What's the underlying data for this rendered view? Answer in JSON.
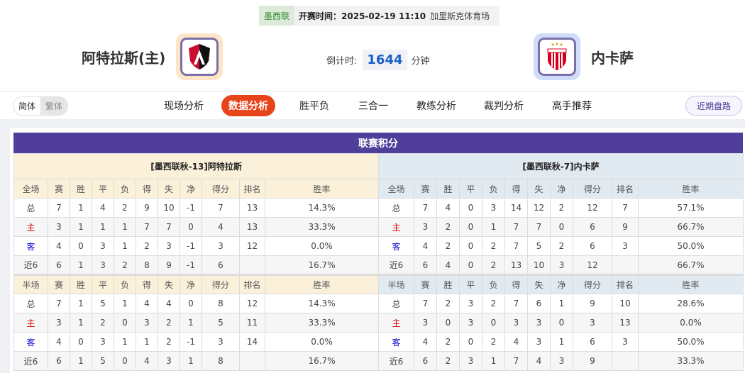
{
  "match": {
    "league": "墨西联",
    "time": "开赛时间：2025-02-19 11:10",
    "venue": "加里斯克体育场",
    "countdown_label": "倒计时:",
    "countdown_value": "1644",
    "countdown_unit": "分钟"
  },
  "home": {
    "name": "阿特拉斯(主)",
    "logo_color": "#c8102e"
  },
  "away": {
    "name": "内卡萨",
    "logo_color": "#d6001c"
  },
  "lang": {
    "simplified": "简体",
    "traditional": "繁体"
  },
  "tabs": [
    "现场分析",
    "数据分析",
    "胜平负",
    "三合一",
    "教练分析",
    "裁判分析",
    "高手推荐"
  ],
  "active_tab": "数据分析",
  "recent_button": "近期盘路",
  "standings": {
    "title": "联赛积分",
    "columns_full": [
      "全场",
      "赛",
      "胜",
      "平",
      "负",
      "得",
      "失",
      "净",
      "得分",
      "排名",
      "胜率"
    ],
    "columns_half": [
      "半场",
      "赛",
      "胜",
      "平",
      "负",
      "得",
      "失",
      "净",
      "得分",
      "排名",
      "胜率"
    ],
    "left": {
      "team": "[墨西联秋-13]阿特拉斯",
      "full": [
        [
          "总",
          "7",
          "1",
          "4",
          "2",
          "9",
          "10",
          "-1",
          "7",
          "13",
          "14.3%"
        ],
        [
          "主",
          "3",
          "1",
          "1",
          "1",
          "7",
          "7",
          "0",
          "4",
          "13",
          "33.3%"
        ],
        [
          "客",
          "4",
          "0",
          "3",
          "1",
          "2",
          "3",
          "-1",
          "3",
          "12",
          "0.0%"
        ],
        [
          "近6",
          "6",
          "1",
          "3",
          "2",
          "8",
          "9",
          "-1",
          "6",
          "",
          "16.7%"
        ]
      ],
      "half": [
        [
          "总",
          "7",
          "1",
          "5",
          "1",
          "4",
          "4",
          "0",
          "8",
          "12",
          "14.3%"
        ],
        [
          "主",
          "3",
          "1",
          "2",
          "0",
          "3",
          "2",
          "1",
          "5",
          "11",
          "33.3%"
        ],
        [
          "客",
          "4",
          "0",
          "3",
          "1",
          "1",
          "2",
          "-1",
          "3",
          "14",
          "0.0%"
        ],
        [
          "近6",
          "6",
          "1",
          "5",
          "0",
          "4",
          "3",
          "1",
          "8",
          "",
          "16.7%"
        ]
      ]
    },
    "right": {
      "team": "[墨西联秋-7]内卡萨",
      "full": [
        [
          "总",
          "7",
          "4",
          "0",
          "3",
          "14",
          "12",
          "2",
          "12",
          "7",
          "57.1%"
        ],
        [
          "主",
          "3",
          "2",
          "0",
          "1",
          "7",
          "7",
          "0",
          "6",
          "9",
          "66.7%"
        ],
        [
          "客",
          "4",
          "2",
          "0",
          "2",
          "7",
          "5",
          "2",
          "6",
          "3",
          "50.0%"
        ],
        [
          "近6",
          "6",
          "4",
          "0",
          "2",
          "13",
          "10",
          "3",
          "12",
          "",
          "66.7%"
        ]
      ],
      "half": [
        [
          "总",
          "7",
          "2",
          "3",
          "2",
          "7",
          "6",
          "1",
          "9",
          "10",
          "28.6%"
        ],
        [
          "主",
          "3",
          "0",
          "3",
          "0",
          "3",
          "3",
          "0",
          "3",
          "13",
          "0.0%"
        ],
        [
          "客",
          "4",
          "2",
          "0",
          "2",
          "4",
          "3",
          "1",
          "6",
          "3",
          "50.0%"
        ],
        [
          "近6",
          "6",
          "2",
          "3",
          "1",
          "7",
          "4",
          "3",
          "9",
          "",
          "33.3%"
        ]
      ]
    }
  }
}
